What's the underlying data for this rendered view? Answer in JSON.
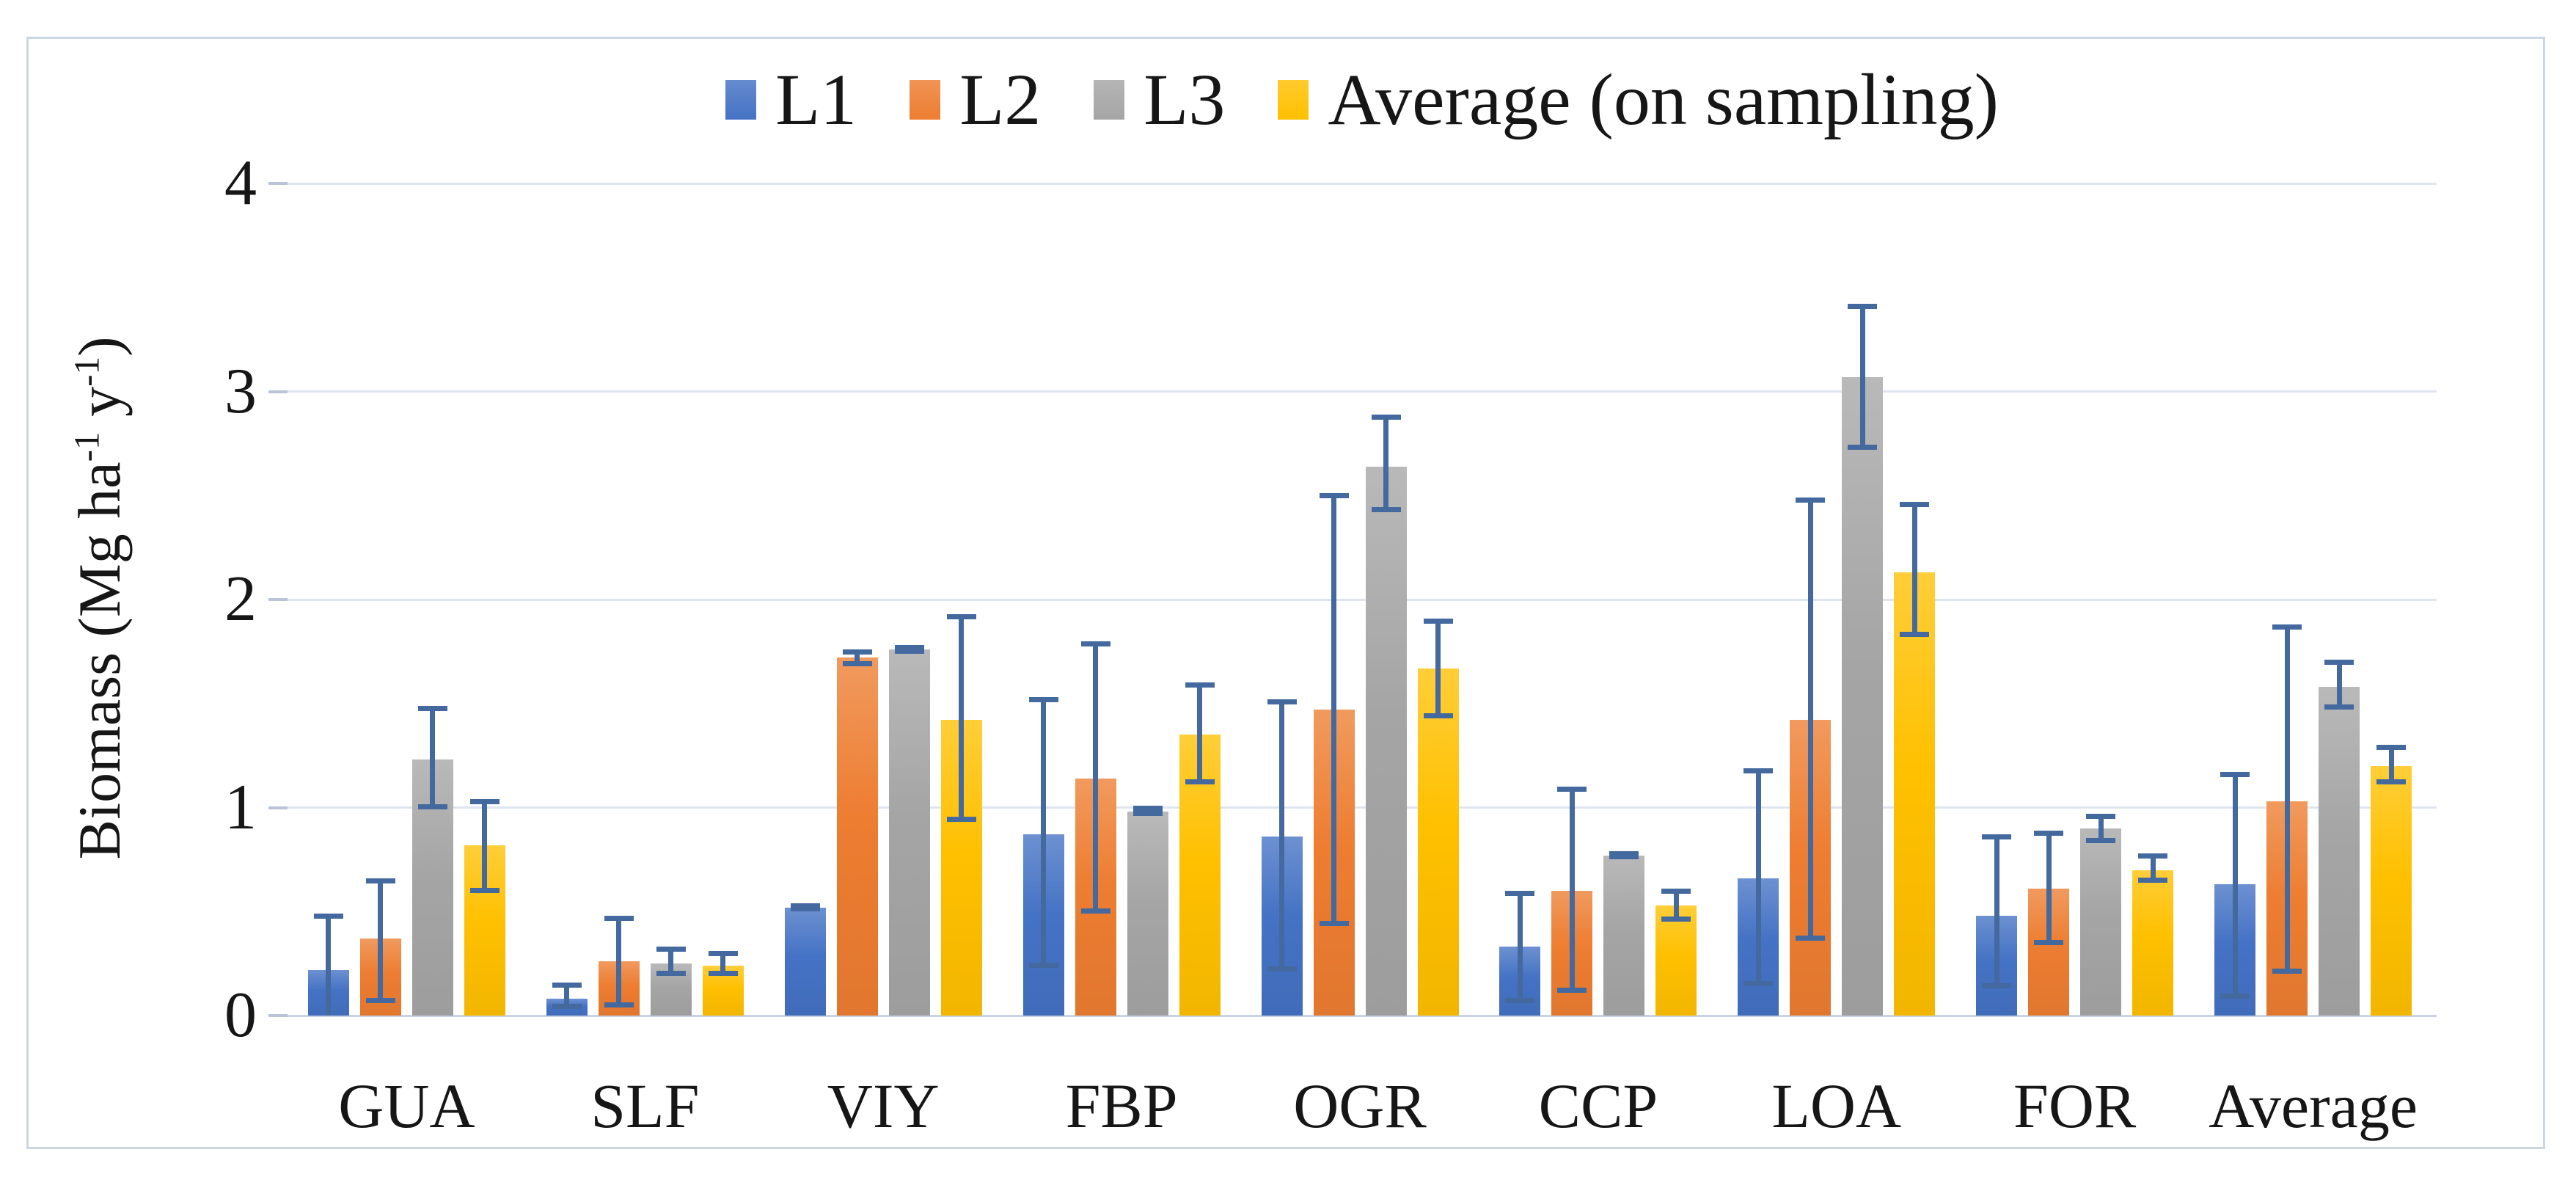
{
  "figure": {
    "background": "#FFFFFF",
    "border_color": "#CDD7E3"
  },
  "legend": {
    "items": [
      "L1",
      "L2",
      "L3",
      "Average (on sampling)"
    ]
  },
  "chart_data": {
    "type": "bar",
    "title": "",
    "xlabel": "",
    "ylabel": "Biomass (Mg ha-1 y-1)",
    "ylabel_parts": [
      {
        "text": "Biomass (Mg ha",
        "sup": false
      },
      {
        "text": "-1",
        "sup": true
      },
      {
        "text": " y",
        "sup": false
      },
      {
        "text": "-1",
        "sup": true
      },
      {
        "text": ")",
        "sup": false
      }
    ],
    "categories": [
      "GUA",
      "SLF",
      "VIY",
      "FBP",
      "OGR",
      "CCP",
      "LOA",
      "FOR",
      "Average"
    ],
    "series": [
      {
        "name": "L1",
        "color": "#4472C4",
        "values": [
          0.22,
          0.08,
          0.52,
          0.87,
          0.86,
          0.33,
          0.66,
          0.48,
          0.63
        ],
        "error_low": [
          0.0,
          0.03,
          0.5,
          0.23,
          0.21,
          0.06,
          0.14,
          0.13,
          0.08
        ],
        "error_high": [
          0.49,
          0.16,
          0.54,
          1.53,
          1.52,
          0.6,
          1.19,
          0.87,
          1.17
        ]
      },
      {
        "name": "L2",
        "color": "#ED7D31",
        "values": [
          0.37,
          0.26,
          1.72,
          1.14,
          1.47,
          0.6,
          1.42,
          0.61,
          1.03
        ],
        "error_low": [
          0.06,
          0.04,
          1.68,
          0.49,
          0.43,
          0.11,
          0.36,
          0.34,
          0.2
        ],
        "error_high": [
          0.66,
          0.48,
          1.76,
          1.8,
          2.51,
          1.1,
          2.49,
          0.89,
          1.88
        ]
      },
      {
        "name": "L3",
        "color": "#A5A5A5",
        "values": [
          1.23,
          0.25,
          1.76,
          0.98,
          2.64,
          0.77,
          3.07,
          0.9,
          1.58
        ],
        "error_low": [
          0.99,
          0.19,
          1.74,
          0.96,
          2.42,
          0.75,
          2.72,
          0.83,
          1.47
        ],
        "error_high": [
          1.49,
          0.33,
          1.78,
          1.01,
          2.89,
          0.79,
          3.42,
          0.97,
          1.71
        ]
      },
      {
        "name": "Average (on sampling)",
        "color": "#FFC000",
        "values": [
          0.82,
          0.24,
          1.42,
          1.35,
          1.67,
          0.53,
          2.13,
          0.7,
          1.2
        ],
        "error_low": [
          0.59,
          0.19,
          0.93,
          1.11,
          1.43,
          0.45,
          1.82,
          0.64,
          1.11
        ],
        "error_high": [
          1.04,
          0.31,
          1.93,
          1.6,
          1.91,
          0.61,
          2.47,
          0.78,
          1.3
        ]
      }
    ],
    "yticks": [
      0,
      1,
      2,
      3,
      4
    ],
    "ylim": [
      0,
      4
    ],
    "grid": true,
    "legend_position": "top",
    "error_bar_color": "#44699E",
    "gridline_color": "#DFE5EF",
    "axis_line_color": "#C9D3E1",
    "tick_color": "#B9C5D6",
    "text_color": "#161616"
  }
}
